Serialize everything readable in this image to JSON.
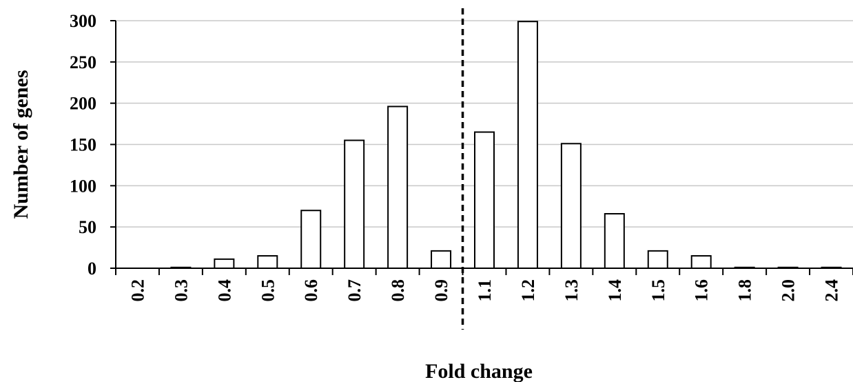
{
  "chart_data": {
    "type": "bar",
    "title": "",
    "xlabel": "Fold change",
    "ylabel": "Number of genes",
    "categories": [
      "0.2",
      "0.3",
      "0.4",
      "0.5",
      "0.6",
      "0.7",
      "0.8",
      "0.9",
      "1.1",
      "1.2",
      "1.3",
      "1.4",
      "1.5",
      "1.6",
      "1.8",
      "2.0",
      "2.4"
    ],
    "values": [
      0,
      1,
      11,
      15,
      70,
      155,
      196,
      21,
      165,
      299,
      151,
      66,
      21,
      15,
      1,
      1,
      1
    ],
    "ylim": [
      0,
      300
    ],
    "yticks": [
      0,
      50,
      100,
      150,
      200,
      250,
      300
    ],
    "grid": "horizontal",
    "legend": "none",
    "reference_line": {
      "style": "dashed",
      "between": [
        "0.9",
        "1.1"
      ]
    },
    "colors": {
      "bar_fill": "#ffffff",
      "bar_stroke": "#000000",
      "grid": "#c8c8c8"
    }
  }
}
